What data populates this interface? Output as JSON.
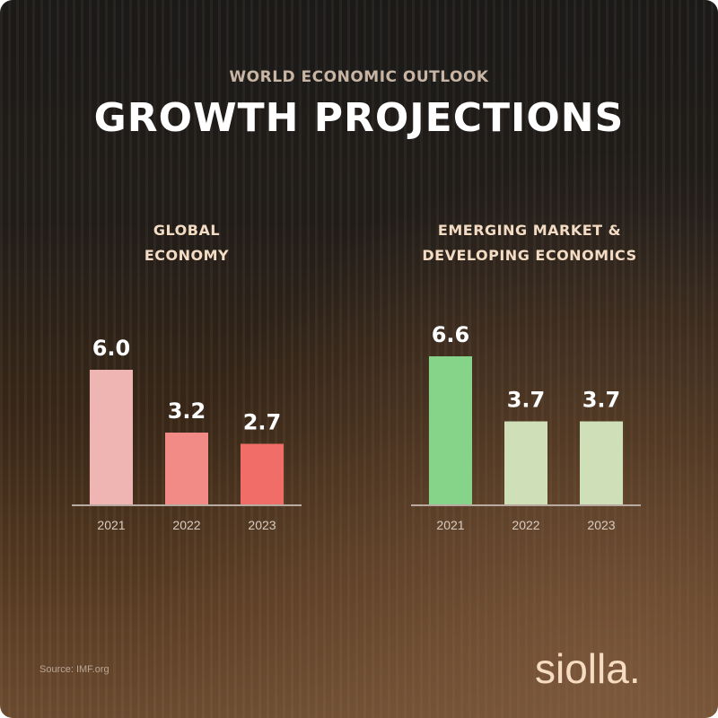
{
  "header": {
    "supertitle": "WORLD ECONOMIC OUTLOOK",
    "title": "GROWTH PROJECTIONS"
  },
  "chart_data": [
    {
      "type": "bar",
      "title_lines": [
        "GLOBAL",
        "ECONOMY"
      ],
      "categories": [
        "2021",
        "2022",
        "2023"
      ],
      "values": [
        6.0,
        3.2,
        2.7
      ],
      "labels": [
        "6.0",
        "3.2",
        "2.7"
      ],
      "colors": [
        "#efb5b3",
        "#f28b86",
        "#f06e67"
      ],
      "ylim": [
        0,
        7
      ],
      "grid": false
    },
    {
      "type": "bar",
      "title_lines": [
        "EMERGING MARKET &",
        "DEVELOPING ECONOMICS"
      ],
      "categories": [
        "2021",
        "2022",
        "2023"
      ],
      "values": [
        6.6,
        3.7,
        3.7
      ],
      "labels": [
        "6.6",
        "3.7",
        "3.7"
      ],
      "colors": [
        "#86d38a",
        "#cfe0b8",
        "#cfe0b8"
      ],
      "ylim": [
        0,
        7
      ],
      "grid": false
    }
  ],
  "footer": {
    "source": "Source: IMF.org",
    "logo": "siolla."
  }
}
